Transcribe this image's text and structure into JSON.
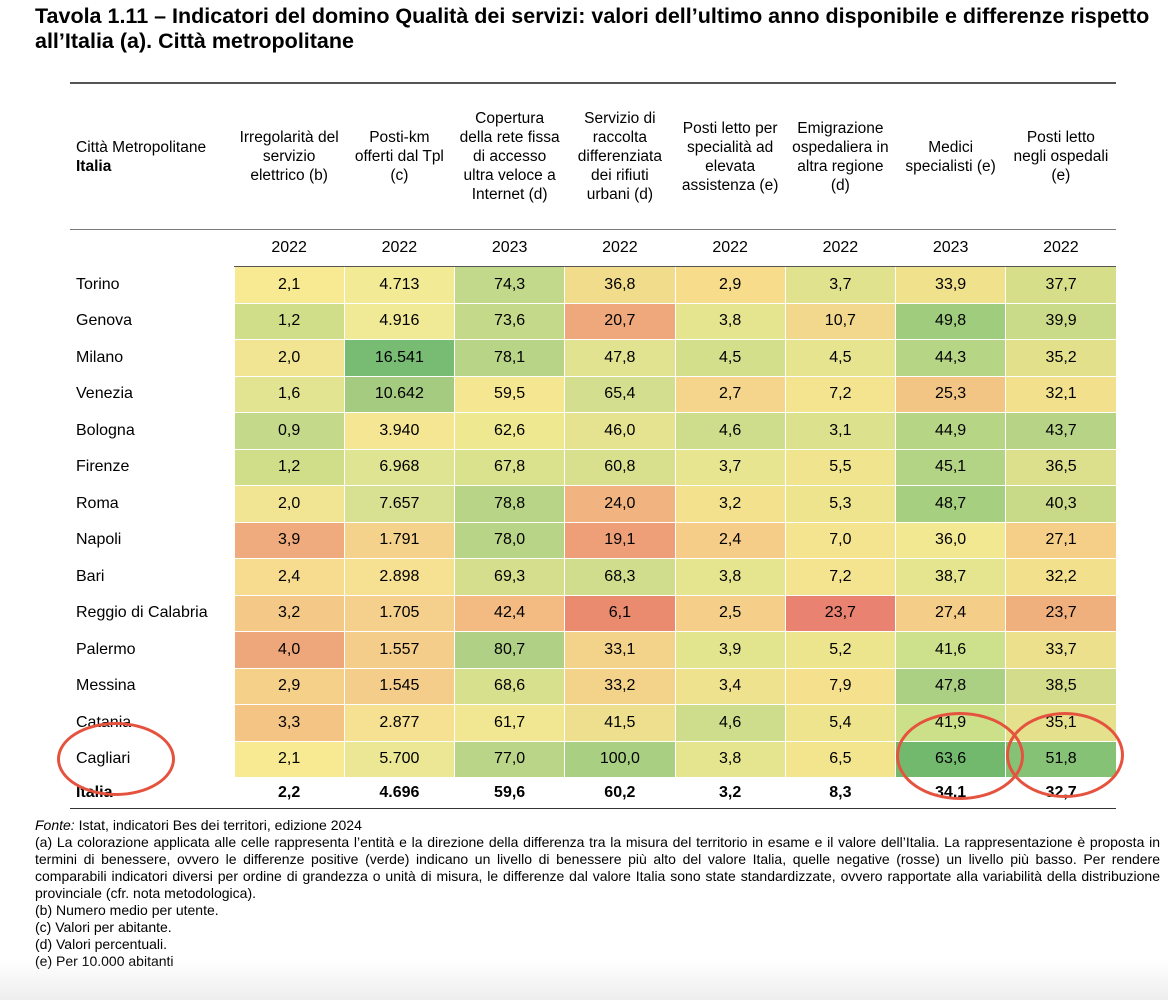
{
  "title": "Tavola 1.11 – Indicatori del domino Qualità dei servizi: valori dell’ultimo anno disponibile e differenze rispetto all’Italia (a). Città metropolitane",
  "header": {
    "first_line1": "Città Metropolitane",
    "first_line2": "Italia",
    "columns": [
      {
        "label": "Irregolarità del servizio elettrico (b)",
        "year": "2022"
      },
      {
        "label": "Posti-km offerti dal Tpl (c)",
        "year": "2022"
      },
      {
        "label": "Copertura della rete fissa di accesso ultra veloce a Internet (d)",
        "year": "2023"
      },
      {
        "label": "Servizio di raccolta differenziata dei rifiuti urbani (d)",
        "year": "2022"
      },
      {
        "label": "Posti letto per specialità ad elevata assistenza (e)",
        "year": "2022"
      },
      {
        "label": "Emigrazione ospedaliera in altra regione (d)",
        "year": "2022"
      },
      {
        "label": "Medici specialisti (e)",
        "year": "2023"
      },
      {
        "label": "Posti letto negli ospedali (e)",
        "year": "2022"
      }
    ]
  },
  "rows": [
    {
      "city": "Torino",
      "values": [
        "2,1",
        "4.713",
        "74,3",
        "36,8",
        "2,9",
        "3,7",
        "33,9",
        "37,7"
      ],
      "colors": [
        "#f7ea92",
        "#f3ea95",
        "#c2d88a",
        "#f1dc8c",
        "#f6dc8b",
        "#e0e28e",
        "#f0e18d",
        "#d6de8a"
      ]
    },
    {
      "city": "Genova",
      "values": [
        "1,2",
        "4.916",
        "73,6",
        "20,7",
        "3,8",
        "10,7",
        "49,8",
        "39,9"
      ],
      "colors": [
        "#d0de8a",
        "#f0e995",
        "#c5d98a",
        "#efa87c",
        "#e6e58f",
        "#f2d88c",
        "#a0cc7e",
        "#c9da88"
      ]
    },
    {
      "city": "Milano",
      "values": [
        "2,0",
        "16.541",
        "78,1",
        "47,8",
        "4,5",
        "4,5",
        "44,3",
        "35,2"
      ],
      "colors": [
        "#f1e593",
        "#78bc74",
        "#b8d487",
        "#e2e390",
        "#d3df8b",
        "#e7e48f",
        "#b6d585",
        "#e3e08c"
      ]
    },
    {
      "city": "Venezia",
      "values": [
        "1,6",
        "10.642",
        "59,5",
        "65,4",
        "2,7",
        "7,2",
        "25,3",
        "32,1"
      ],
      "colors": [
        "#e2e492",
        "#a4cb7f",
        "#f5e791",
        "#d3df8e",
        "#f5d48b",
        "#f5e48f",
        "#f2c585",
        "#f2e08c"
      ]
    },
    {
      "city": "Bologna",
      "values": [
        "0,9",
        "3.940",
        "62,6",
        "46,0",
        "4,6",
        "3,1",
        "44,9",
        "43,7"
      ],
      "colors": [
        "#c4d98a",
        "#f5e694",
        "#eee891",
        "#e6e390",
        "#cedd8b",
        "#dbe18d",
        "#b6d585",
        "#b6d386"
      ]
    },
    {
      "city": "Firenze",
      "values": [
        "1,2",
        "6.968",
        "67,8",
        "60,8",
        "3,7",
        "5,5",
        "45,1",
        "36,5"
      ],
      "colors": [
        "#d0de8a",
        "#dfe493",
        "#dbe28e",
        "#d8e08e",
        "#e7e58f",
        "#f0e48e",
        "#b4d485",
        "#dcdf8b"
      ]
    },
    {
      "city": "Roma",
      "values": [
        "2,0",
        "7.657",
        "78,8",
        "24,0",
        "3,2",
        "5,3",
        "48,7",
        "40,3"
      ],
      "colors": [
        "#f1e593",
        "#d8e192",
        "#b8d487",
        "#f1b380",
        "#f3e18e",
        "#eee48e",
        "#a7cf80",
        "#c8d988"
      ]
    },
    {
      "city": "Napoli",
      "values": [
        "3,9",
        "1.791",
        "78,0",
        "19,1",
        "2,4",
        "7,0",
        "36,0",
        "27,1"
      ],
      "colors": [
        "#efab7d",
        "#f5d28c",
        "#b8d487",
        "#ee9f78",
        "#f5cc88",
        "#f5e48f",
        "#f2e891",
        "#f5ce87"
      ]
    },
    {
      "city": "Bari",
      "values": [
        "2,4",
        "2.898",
        "69,3",
        "68,3",
        "3,8",
        "7,2",
        "38,7",
        "32,2"
      ],
      "colors": [
        "#f7db8f",
        "#f6e092",
        "#d4de8c",
        "#cfdd8c",
        "#e6e58f",
        "#f5e48f",
        "#e5e48f",
        "#f2e08c"
      ]
    },
    {
      "city": "Reggio di Calabria",
      "values": [
        "3,2",
        "1.705",
        "42,4",
        "6,1",
        "2,5",
        "23,7",
        "27,4",
        "23,7"
      ],
      "colors": [
        "#f4c886",
        "#f5d08c",
        "#f3bb82",
        "#ea8a6f",
        "#f5cf89",
        "#e98270",
        "#f4ce88",
        "#f0b07d"
      ]
    },
    {
      "city": "Palermo",
      "values": [
        "4,0",
        "1.557",
        "80,7",
        "33,1",
        "3,9",
        "5,2",
        "41,6",
        "33,7"
      ],
      "colors": [
        "#eea67b",
        "#f5cd8b",
        "#b0d185",
        "#f3d28a",
        "#e3e48e",
        "#ede48e",
        "#cde08b",
        "#ece08c"
      ]
    },
    {
      "city": "Messina",
      "values": [
        "2,9",
        "1.545",
        "68,6",
        "33,2",
        "3,4",
        "7,9",
        "47,8",
        "38,5"
      ],
      "colors": [
        "#f5d088",
        "#f5cd8b",
        "#d7e08d",
        "#f3d28a",
        "#efe28f",
        "#f5e08d",
        "#abd083",
        "#d2dc8a"
      ]
    },
    {
      "city": "Catania",
      "values": [
        "3,3",
        "2.877",
        "61,7",
        "41,5",
        "4,6",
        "5,4",
        "41,9",
        "35,1"
      ],
      "colors": [
        "#f4c484",
        "#f6e092",
        "#f1e792",
        "#eedf8f",
        "#cedd8b",
        "#efe48e",
        "#cce08a",
        "#e4e08c"
      ]
    },
    {
      "city": "Cagliari",
      "values": [
        "2,1",
        "5.700",
        "77,0",
        "100,0",
        "3,8",
        "6,5",
        "63,6",
        "51,8"
      ],
      "colors": [
        "#f7ea92",
        "#ebe795",
        "#bbd588",
        "#a9cf83",
        "#e6e58f",
        "#f3e48e",
        "#72b96e",
        "#86c275"
      ]
    }
  ],
  "total": {
    "city": "Italia",
    "values": [
      "2,2",
      "4.696",
      "59,6",
      "60,2",
      "3,2",
      "8,3",
      "34,1",
      "32,7"
    ]
  },
  "notes": {
    "fonte_label": "Fonte:",
    "fonte_text": " Istat, indicatori Bes dei territori, edizione 2024",
    "a": "(a) La colorazione applicata alle celle rappresenta l’entità e la direzione della differenza tra la misura del territorio in esame e il valore dell’Italia. La rappresentazione è proposta in termini di benessere, ovvero le differenze positive (verde) indicano un livello di benessere più alto del valore Italia, quelle negative (rosse) un livello più basso. Per rendere comparabili indicatori diversi per ordine di grandezza o unità di misura, le differenze dal valore Italia sono state standardizzate, ovvero rapportate alla variabilità della distribuzione provinciale (cfr. nota metodologica).",
    "b": "(b) Numero medio per utente.",
    "c": "(c) Valori per abitante.",
    "d": "(d) Valori percentuali.",
    "e": "(e) Per 10.000 abitanti"
  },
  "annotation_color": "#e5533f"
}
